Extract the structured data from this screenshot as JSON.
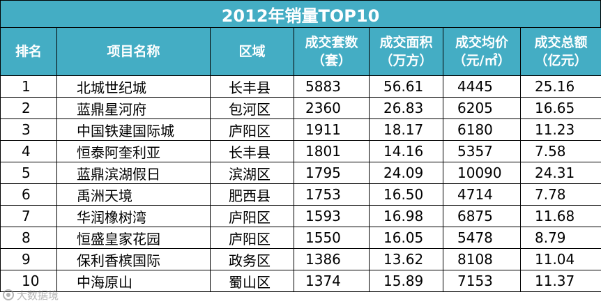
{
  "title": "2012年销量TOP10",
  "headers": [
    {
      "line1": "排名",
      "line2": ""
    },
    {
      "line1": "项目名称",
      "line2": ""
    },
    {
      "line1": "区域",
      "line2": ""
    },
    {
      "line1": "成交套数",
      "line2": "（套）"
    },
    {
      "line1": "成交面积",
      "line2": "（万方）"
    },
    {
      "line1": "成交均价",
      "line2": "（元/㎡）"
    },
    {
      "line1": "成交总额",
      "line2": "（亿元）"
    }
  ],
  "rows": [
    {
      "rank": "1",
      "name": "北城世纪城",
      "area": "长丰县",
      "units": "5883",
      "space": "56.61",
      "price": "4445",
      "total": "25.16"
    },
    {
      "rank": "2",
      "name": "蓝鼎星河府",
      "area": "包河区",
      "units": "2360",
      "space": "26.83",
      "price": "6205",
      "total": "16.65"
    },
    {
      "rank": "3",
      "name": "中国铁建国际城",
      "area": "庐阳区",
      "units": "1911",
      "space": "18.17",
      "price": "6180",
      "total": "11.23"
    },
    {
      "rank": "4",
      "name": "恒泰阿奎利亚",
      "area": "长丰县",
      "units": "1801",
      "space": "14.16",
      "price": "5357",
      "total": "7.58"
    },
    {
      "rank": "5",
      "name": "蓝鼎滨湖假日",
      "area": "滨湖区",
      "units": "1795",
      "space": "24.09",
      "price": "10090",
      "total": "24.31"
    },
    {
      "rank": "6",
      "name": "禹洲天境",
      "area": "肥西县",
      "units": "1753",
      "space": "16.50",
      "price": "4714",
      "total": "7.78"
    },
    {
      "rank": "7",
      "name": "华润橡树湾",
      "area": "庐阳区",
      "units": "1593",
      "space": "16.98",
      "price": "6875",
      "total": "11.68"
    },
    {
      "rank": "8",
      "name": "恒盛皇家花园",
      "area": "庐阳区",
      "units": "1550",
      "space": "16.05",
      "price": "5478",
      "total": "8.79"
    },
    {
      "rank": "9",
      "name": "保利香槟国际",
      "area": "政务区",
      "units": "1386",
      "space": "13.62",
      "price": "8108",
      "total": "11.04"
    },
    {
      "rank": "10",
      "name": "中海原山",
      "area": "蜀山区",
      "units": "1374",
      "space": "15.89",
      "price": "7153",
      "total": "11.37"
    }
  ],
  "watermark": {
    "text": "大数据境",
    "icon": "logo-icon"
  },
  "colors": {
    "header_bg": "#44adc4",
    "header_text": "#ffffff"
  }
}
